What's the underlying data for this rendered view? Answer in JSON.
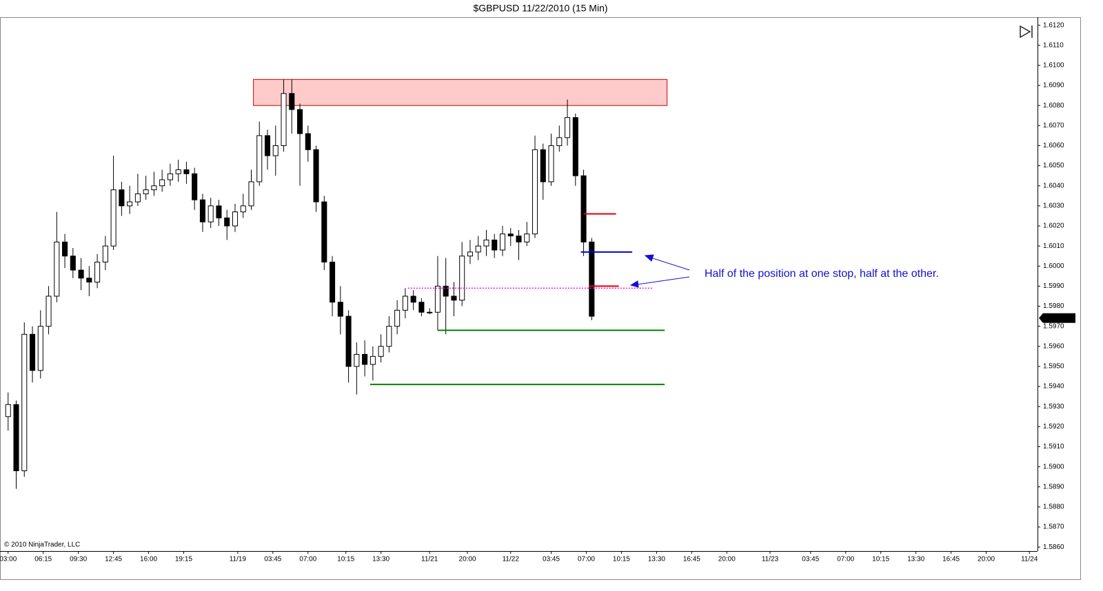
{
  "chart_data": {
    "type": "candlestick",
    "title": "$GBPUSD  11/22/2010 (15 Min)",
    "copyright": "© 2010 NinjaTrader, LLC",
    "annotation": {
      "text": "Half of the position at one stop, half at the other.",
      "color": "#1010d0"
    },
    "xlim": [
      -3,
      381
    ],
    "ylim": [
      1.5858,
      1.6124
    ],
    "xticks": [
      {
        "value": 0,
        "label": "03:00"
      },
      {
        "value": 13,
        "label": "06:15"
      },
      {
        "value": 26,
        "label": "09:30"
      },
      {
        "value": 39,
        "label": "12:45"
      },
      {
        "value": 52,
        "label": "16:00"
      },
      {
        "value": 65,
        "label": "19:15"
      },
      {
        "value": 85,
        "label": "11/19"
      },
      {
        "value": 98,
        "label": "03:45"
      },
      {
        "value": 111,
        "label": "07:00"
      },
      {
        "value": 125,
        "label": "10:15"
      },
      {
        "value": 138,
        "label": "13:30"
      },
      {
        "value": 156,
        "label": "11/21"
      },
      {
        "value": 170,
        "label": "20:00"
      },
      {
        "value": 186,
        "label": "11/22"
      },
      {
        "value": 201,
        "label": "03:45"
      },
      {
        "value": 214,
        "label": "07:00"
      },
      {
        "value": 227,
        "label": "10:15"
      },
      {
        "value": 240,
        "label": "13:30"
      },
      {
        "value": 253,
        "label": "16:45"
      },
      {
        "value": 266,
        "label": "20:00"
      },
      {
        "value": 282,
        "label": "11/23"
      },
      {
        "value": 297,
        "label": "03:45"
      },
      {
        "value": 310,
        "label": "07:00"
      },
      {
        "value": 323,
        "label": "10:15"
      },
      {
        "value": 336,
        "label": "13:30"
      },
      {
        "value": 349,
        "label": "16:45"
      },
      {
        "value": 362,
        "label": "20:00"
      },
      {
        "value": 378,
        "label": "11/24"
      }
    ],
    "yticks": [
      {
        "value": 1.586,
        "label": "1.5860"
      },
      {
        "value": 1.587,
        "label": "1.5870"
      },
      {
        "value": 1.588,
        "label": "1.5880"
      },
      {
        "value": 1.589,
        "label": "1.5890"
      },
      {
        "value": 1.59,
        "label": "1.5900"
      },
      {
        "value": 1.591,
        "label": "1.5910"
      },
      {
        "value": 1.592,
        "label": "1.5920"
      },
      {
        "value": 1.593,
        "label": "1.5930"
      },
      {
        "value": 1.594,
        "label": "1.5940"
      },
      {
        "value": 1.595,
        "label": "1.5950"
      },
      {
        "value": 1.596,
        "label": "1.5960"
      },
      {
        "value": 1.597,
        "label": "1.5970"
      },
      {
        "value": 1.598,
        "label": "1.5980"
      },
      {
        "value": 1.599,
        "label": "1.5990"
      },
      {
        "value": 1.6,
        "label": "1.6000"
      },
      {
        "value": 1.601,
        "label": "1.6010"
      },
      {
        "value": 1.602,
        "label": "1.6020"
      },
      {
        "value": 1.603,
        "label": "1.6030"
      },
      {
        "value": 1.604,
        "label": "1.6040"
      },
      {
        "value": 1.605,
        "label": "1.6050"
      },
      {
        "value": 1.606,
        "label": "1.6060"
      },
      {
        "value": 1.607,
        "label": "1.6070"
      },
      {
        "value": 1.608,
        "label": "1.6080"
      },
      {
        "value": 1.609,
        "label": "1.6090"
      },
      {
        "value": 1.61,
        "label": "1.6100"
      },
      {
        "value": 1.611,
        "label": "1.6110"
      },
      {
        "value": 1.612,
        "label": "1.6120"
      }
    ],
    "last_price": {
      "value": 1.59741,
      "label": "1.5974'1"
    },
    "x": [
      0,
      3,
      6,
      9,
      12,
      15,
      18,
      21,
      24,
      27,
      30,
      33,
      36,
      39,
      42,
      45,
      48,
      51,
      54,
      57,
      60,
      63,
      66,
      69,
      72,
      75,
      78,
      81,
      84,
      87,
      90,
      93,
      96,
      99,
      102,
      105,
      108,
      111,
      114,
      117,
      120,
      123,
      126,
      129,
      132,
      135,
      138,
      141,
      144,
      147,
      150,
      153,
      156,
      159,
      162,
      165,
      168,
      171,
      174,
      177,
      180,
      183,
      186,
      189,
      192,
      195,
      198,
      201,
      204,
      207,
      210,
      213,
      216
    ],
    "open": [
      1.5925,
      1.5931,
      1.5898,
      1.5966,
      1.5948,
      1.597,
      1.5985,
      1.6012,
      1.6005,
      1.5998,
      1.5994,
      1.5992,
      1.6002,
      1.601,
      1.6038,
      1.603,
      1.6032,
      1.6036,
      1.6038,
      1.604,
      1.6043,
      1.6046,
      1.6048,
      1.6046,
      1.6033,
      1.6022,
      1.603,
      1.6024,
      1.602,
      1.6027,
      1.603,
      1.6042,
      1.6065,
      1.6055,
      1.606,
      1.6086,
      1.6078,
      1.6066,
      1.6058,
      1.6032,
      1.6002,
      1.5982,
      1.5975,
      1.595,
      1.5956,
      1.5951,
      1.5955,
      1.596,
      1.597,
      1.5978,
      1.5985,
      1.5982,
      1.5977,
      1.5977,
      1.599,
      1.5985,
      1.5983,
      1.6005,
      1.6007,
      1.601,
      1.6013,
      1.6008,
      1.6016,
      1.6015,
      1.6012,
      1.6016,
      1.6058,
      1.6042,
      1.606,
      1.6064,
      1.6074,
      1.6045,
      1.6012
    ],
    "high": [
      1.5937,
      1.5933,
      1.5972,
      1.597,
      1.5978,
      1.599,
      1.6027,
      1.6016,
      1.6009,
      1.6004,
      1.6,
      1.6006,
      1.6015,
      1.6055,
      1.6042,
      1.604,
      1.6046,
      1.6045,
      1.6047,
      1.6048,
      1.6051,
      1.6053,
      1.6052,
      1.6049,
      1.6036,
      1.6034,
      1.6033,
      1.6028,
      1.6031,
      1.6036,
      1.6048,
      1.6072,
      1.6068,
      1.607,
      1.6093,
      1.6093,
      1.6081,
      1.607,
      1.606,
      1.6035,
      1.6005,
      1.599,
      1.5978,
      1.5962,
      1.5963,
      1.596,
      1.5966,
      1.5975,
      1.5983,
      1.5989,
      1.5988,
      1.5984,
      1.5979,
      1.6005,
      1.6004,
      1.5992,
      1.6012,
      1.6013,
      1.6015,
      1.6018,
      1.6016,
      1.602,
      1.6019,
      1.6018,
      1.6022,
      1.6065,
      1.6061,
      1.6066,
      1.607,
      1.6083,
      1.6076,
      1.6048,
      1.6014
    ],
    "low": [
      1.5918,
      1.5889,
      1.5895,
      1.5942,
      1.5944,
      1.5966,
      1.5982,
      1.5999,
      1.5994,
      1.5988,
      1.5985,
      1.5989,
      1.5998,
      1.6008,
      1.6025,
      1.6026,
      1.603,
      1.6033,
      1.6035,
      1.6037,
      1.604,
      1.6042,
      1.6041,
      1.6028,
      1.6017,
      1.6019,
      1.602,
      1.6013,
      1.6017,
      1.6024,
      1.6028,
      1.604,
      1.6048,
      1.6045,
      1.6057,
      1.6066,
      1.604,
      1.6052,
      1.6027,
      1.5998,
      1.5975,
      1.5966,
      1.5942,
      1.5936,
      1.5945,
      1.5943,
      1.5952,
      1.5957,
      1.5966,
      1.5974,
      1.5978,
      1.5975,
      1.5976,
      1.5968,
      1.5966,
      1.5975,
      1.598,
      1.6001,
      1.6003,
      1.6005,
      1.6004,
      1.6005,
      1.601,
      1.6003,
      1.601,
      1.6014,
      1.6033,
      1.604,
      1.6057,
      1.606,
      1.604,
      1.6005,
      1.5973
    ],
    "close": [
      1.5931,
      1.5898,
      1.5966,
      1.5948,
      1.597,
      1.5985,
      1.6012,
      1.6005,
      1.5998,
      1.5994,
      1.5992,
      1.6002,
      1.601,
      1.6038,
      1.603,
      1.6032,
      1.6036,
      1.6038,
      1.604,
      1.6043,
      1.6046,
      1.6048,
      1.6046,
      1.6033,
      1.6022,
      1.603,
      1.6024,
      1.602,
      1.6027,
      1.603,
      1.6042,
      1.6065,
      1.6055,
      1.606,
      1.6086,
      1.6078,
      1.6066,
      1.6058,
      1.6032,
      1.6002,
      1.5982,
      1.5975,
      1.595,
      1.5956,
      1.5951,
      1.5955,
      1.596,
      1.597,
      1.5978,
      1.5985,
      1.5982,
      1.5977,
      1.5977,
      1.599,
      1.5985,
      1.5983,
      1.6005,
      1.6007,
      1.601,
      1.6013,
      1.6008,
      1.6016,
      1.6015,
      1.6012,
      1.6016,
      1.6058,
      1.6042,
      1.606,
      1.6064,
      1.6074,
      1.6045,
      1.6012,
      1.5975
    ],
    "zones": [
      {
        "x": [
          90.8,
          243.9
        ],
        "y": [
          1.608,
          1.6093
        ],
        "fill": "#ffc4c4",
        "color": "#cc0000"
      }
    ],
    "levels": [
      {
        "y": 1.5968,
        "x": [
          159,
          243
        ],
        "color": "#008000",
        "style": "solid"
      },
      {
        "y": 1.5941,
        "x": [
          134,
          243
        ],
        "color": "#008000",
        "style": "solid"
      },
      {
        "y": 1.5989,
        "x": [
          148,
          238.5
        ],
        "color": "#ff00ff",
        "style": "dotted"
      },
      {
        "y": 1.6026,
        "x": [
          213,
          225
        ],
        "color": "#e00000",
        "style": "solid"
      },
      {
        "y": 1.6007,
        "x": [
          212,
          231
        ],
        "color": "#0000e0",
        "style": "solid"
      },
      {
        "y": 1.599,
        "x": [
          215,
          226
        ],
        "color": "#e00000",
        "style": "solid"
      }
    ]
  }
}
